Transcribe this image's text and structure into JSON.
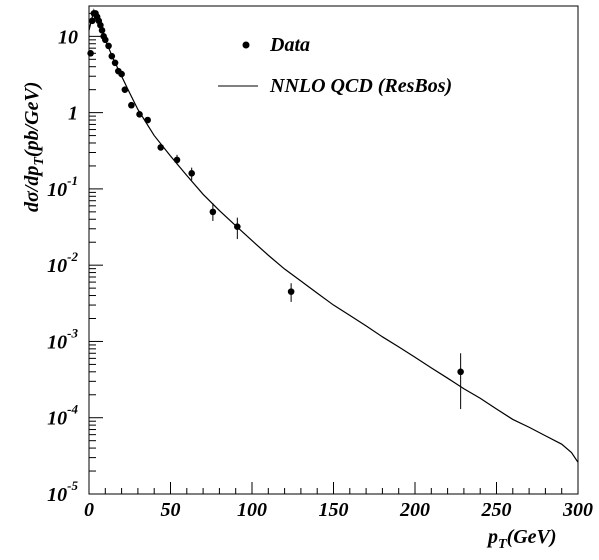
{
  "chart_data": {
    "type": "scatter",
    "title": "",
    "xlabel": "p_T(GeV)",
    "xlabel_main": "p",
    "xlabel_sub": "T",
    "xlabel_rest": "(GeV)",
    "ylabel": "dσ/dp_T(pb/GeV)",
    "ylabel_main": "dσ/dp",
    "ylabel_sub": "T",
    "ylabel_rest": "(pb/GeV)",
    "xlim": [
      0,
      300
    ],
    "ylim": [
      1e-05,
      25
    ],
    "yscale": "log",
    "grid": false,
    "legend_position": "top-right",
    "x_ticks": [
      0,
      50,
      100,
      150,
      200,
      250,
      300
    ],
    "x_tick_labels": [
      "0",
      "50",
      "100",
      "150",
      "200",
      "250",
      "300"
    ],
    "y_ticks": [
      {
        "value": 10,
        "base": "10",
        "exp": ""
      },
      {
        "value": 1,
        "base": "1",
        "exp": ""
      },
      {
        "value": 0.1,
        "base": "10",
        "exp": "-1"
      },
      {
        "value": 0.01,
        "base": "10",
        "exp": "-2"
      },
      {
        "value": 0.001,
        "base": "10",
        "exp": "-3"
      },
      {
        "value": 0.0001,
        "base": "10",
        "exp": "-4"
      },
      {
        "value": 1e-05,
        "base": "10",
        "exp": "-5"
      }
    ],
    "series": [
      {
        "name": "Data",
        "kind": "points",
        "color": "#000000",
        "points": [
          {
            "x": 1,
            "y": 6.0
          },
          {
            "x": 2,
            "y": 16.0
          },
          {
            "x": 3,
            "y": 20.0
          },
          {
            "x": 4,
            "y": 20.0
          },
          {
            "x": 5,
            "y": 18.0
          },
          {
            "x": 6,
            "y": 16.0
          },
          {
            "x": 7,
            "y": 14.0
          },
          {
            "x": 8,
            "y": 12.0
          },
          {
            "x": 9,
            "y": 10.0
          },
          {
            "x": 10,
            "y": 9.0
          },
          {
            "x": 12,
            "y": 7.5
          },
          {
            "x": 14,
            "y": 5.5
          },
          {
            "x": 16,
            "y": 4.5
          },
          {
            "x": 18,
            "y": 3.5
          },
          {
            "x": 20,
            "y": 3.2
          },
          {
            "x": 22,
            "y": 2.0
          },
          {
            "x": 26,
            "y": 1.25
          },
          {
            "x": 31,
            "y": 0.95
          },
          {
            "x": 36,
            "y": 0.8
          },
          {
            "x": 44,
            "y": 0.35,
            "err": [
              0.32,
              0.38
            ]
          },
          {
            "x": 54,
            "y": 0.24,
            "err": [
              0.21,
              0.28
            ]
          },
          {
            "x": 63,
            "y": 0.16,
            "err": [
              0.13,
              0.19
            ]
          },
          {
            "x": 76,
            "y": 0.05,
            "err": [
              0.038,
              0.065
            ]
          },
          {
            "x": 91,
            "y": 0.032,
            "err": [
              0.022,
              0.042
            ]
          },
          {
            "x": 124,
            "y": 0.0045,
            "err": [
              0.0033,
              0.0058
            ]
          },
          {
            "x": 228,
            "y": 0.0004,
            "err": [
              0.00013,
              0.0007
            ]
          }
        ]
      },
      {
        "name": "NNLO QCD (ResBos)",
        "kind": "line",
        "color": "#000000",
        "points": [
          {
            "x": 0,
            "y": 12.0
          },
          {
            "x": 3,
            "y": 22.0
          },
          {
            "x": 6,
            "y": 15.0
          },
          {
            "x": 10,
            "y": 9.0
          },
          {
            "x": 15,
            "y": 5.0
          },
          {
            "x": 20,
            "y": 3.0
          },
          {
            "x": 25,
            "y": 1.8
          },
          {
            "x": 30,
            "y": 1.1
          },
          {
            "x": 40,
            "y": 0.5
          },
          {
            "x": 50,
            "y": 0.27
          },
          {
            "x": 60,
            "y": 0.15
          },
          {
            "x": 70,
            "y": 0.085
          },
          {
            "x": 80,
            "y": 0.052
          },
          {
            "x": 90,
            "y": 0.033
          },
          {
            "x": 100,
            "y": 0.021
          },
          {
            "x": 110,
            "y": 0.0135
          },
          {
            "x": 120,
            "y": 0.0089
          },
          {
            "x": 130,
            "y": 0.0062
          },
          {
            "x": 140,
            "y": 0.0043
          },
          {
            "x": 150,
            "y": 0.003
          },
          {
            "x": 160,
            "y": 0.0022
          },
          {
            "x": 170,
            "y": 0.0016
          },
          {
            "x": 180,
            "y": 0.00115
          },
          {
            "x": 190,
            "y": 0.00085
          },
          {
            "x": 200,
            "y": 0.00062
          },
          {
            "x": 210,
            "y": 0.00045
          },
          {
            "x": 220,
            "y": 0.00033
          },
          {
            "x": 230,
            "y": 0.00024
          },
          {
            "x": 240,
            "y": 0.00018
          },
          {
            "x": 250,
            "y": 0.00013
          },
          {
            "x": 260,
            "y": 9.5e-05
          },
          {
            "x": 270,
            "y": 7.5e-05
          },
          {
            "x": 280,
            "y": 5.8e-05
          },
          {
            "x": 290,
            "y": 4.5e-05
          },
          {
            "x": 296,
            "y": 3.5e-05
          },
          {
            "x": 300,
            "y": 2.6e-05
          }
        ]
      }
    ],
    "legend": [
      {
        "label": "Data",
        "symbol": "marker"
      },
      {
        "label": "NNLO QCD (ResBos)",
        "symbol": "line"
      }
    ]
  }
}
